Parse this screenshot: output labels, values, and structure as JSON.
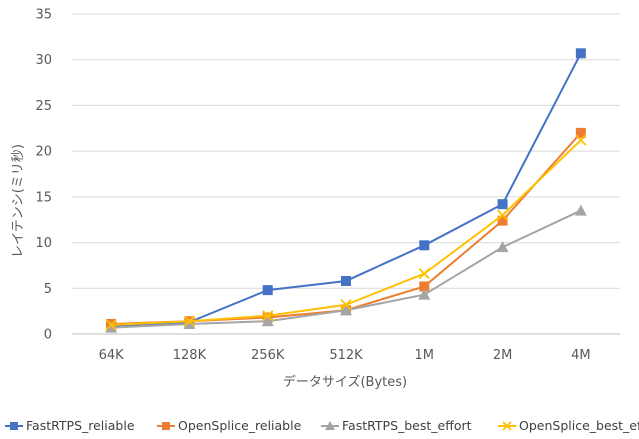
{
  "chart_data": {
    "type": "line",
    "title": "",
    "xlabel": "データサイズ(Bytes)",
    "ylabel": "レイテンシ(ミリ秒)",
    "categories": [
      "64K",
      "128K",
      "256K",
      "512K",
      "1M",
      "2M",
      "4M"
    ],
    "ylim": [
      0,
      35
    ],
    "yticks": [
      0,
      5,
      10,
      15,
      20,
      25,
      30,
      35
    ],
    "grid": true,
    "legend_position": "bottom",
    "series": [
      {
        "name": "FastRTPS_reliable",
        "color": "#4472C4",
        "marker": "square",
        "values": [
          0.9,
          1.3,
          4.8,
          5.8,
          9.7,
          14.2,
          30.7
        ]
      },
      {
        "name": "OpenSplice_reliable",
        "color": "#ED7D31",
        "marker": "square",
        "values": [
          1.1,
          1.4,
          1.8,
          2.6,
          5.2,
          12.4,
          22.0
        ]
      },
      {
        "name": "FastRTPS_best_effort",
        "color": "#A5A5A5",
        "marker": "triangle",
        "values": [
          0.7,
          1.1,
          1.4,
          2.6,
          4.3,
          9.5,
          13.5
        ]
      },
      {
        "name": "OpenSplice_best_effort",
        "color": "#FFC000",
        "marker": "x",
        "values": [
          1.0,
          1.4,
          2.0,
          3.2,
          6.6,
          13.0,
          21.2
        ]
      }
    ]
  }
}
